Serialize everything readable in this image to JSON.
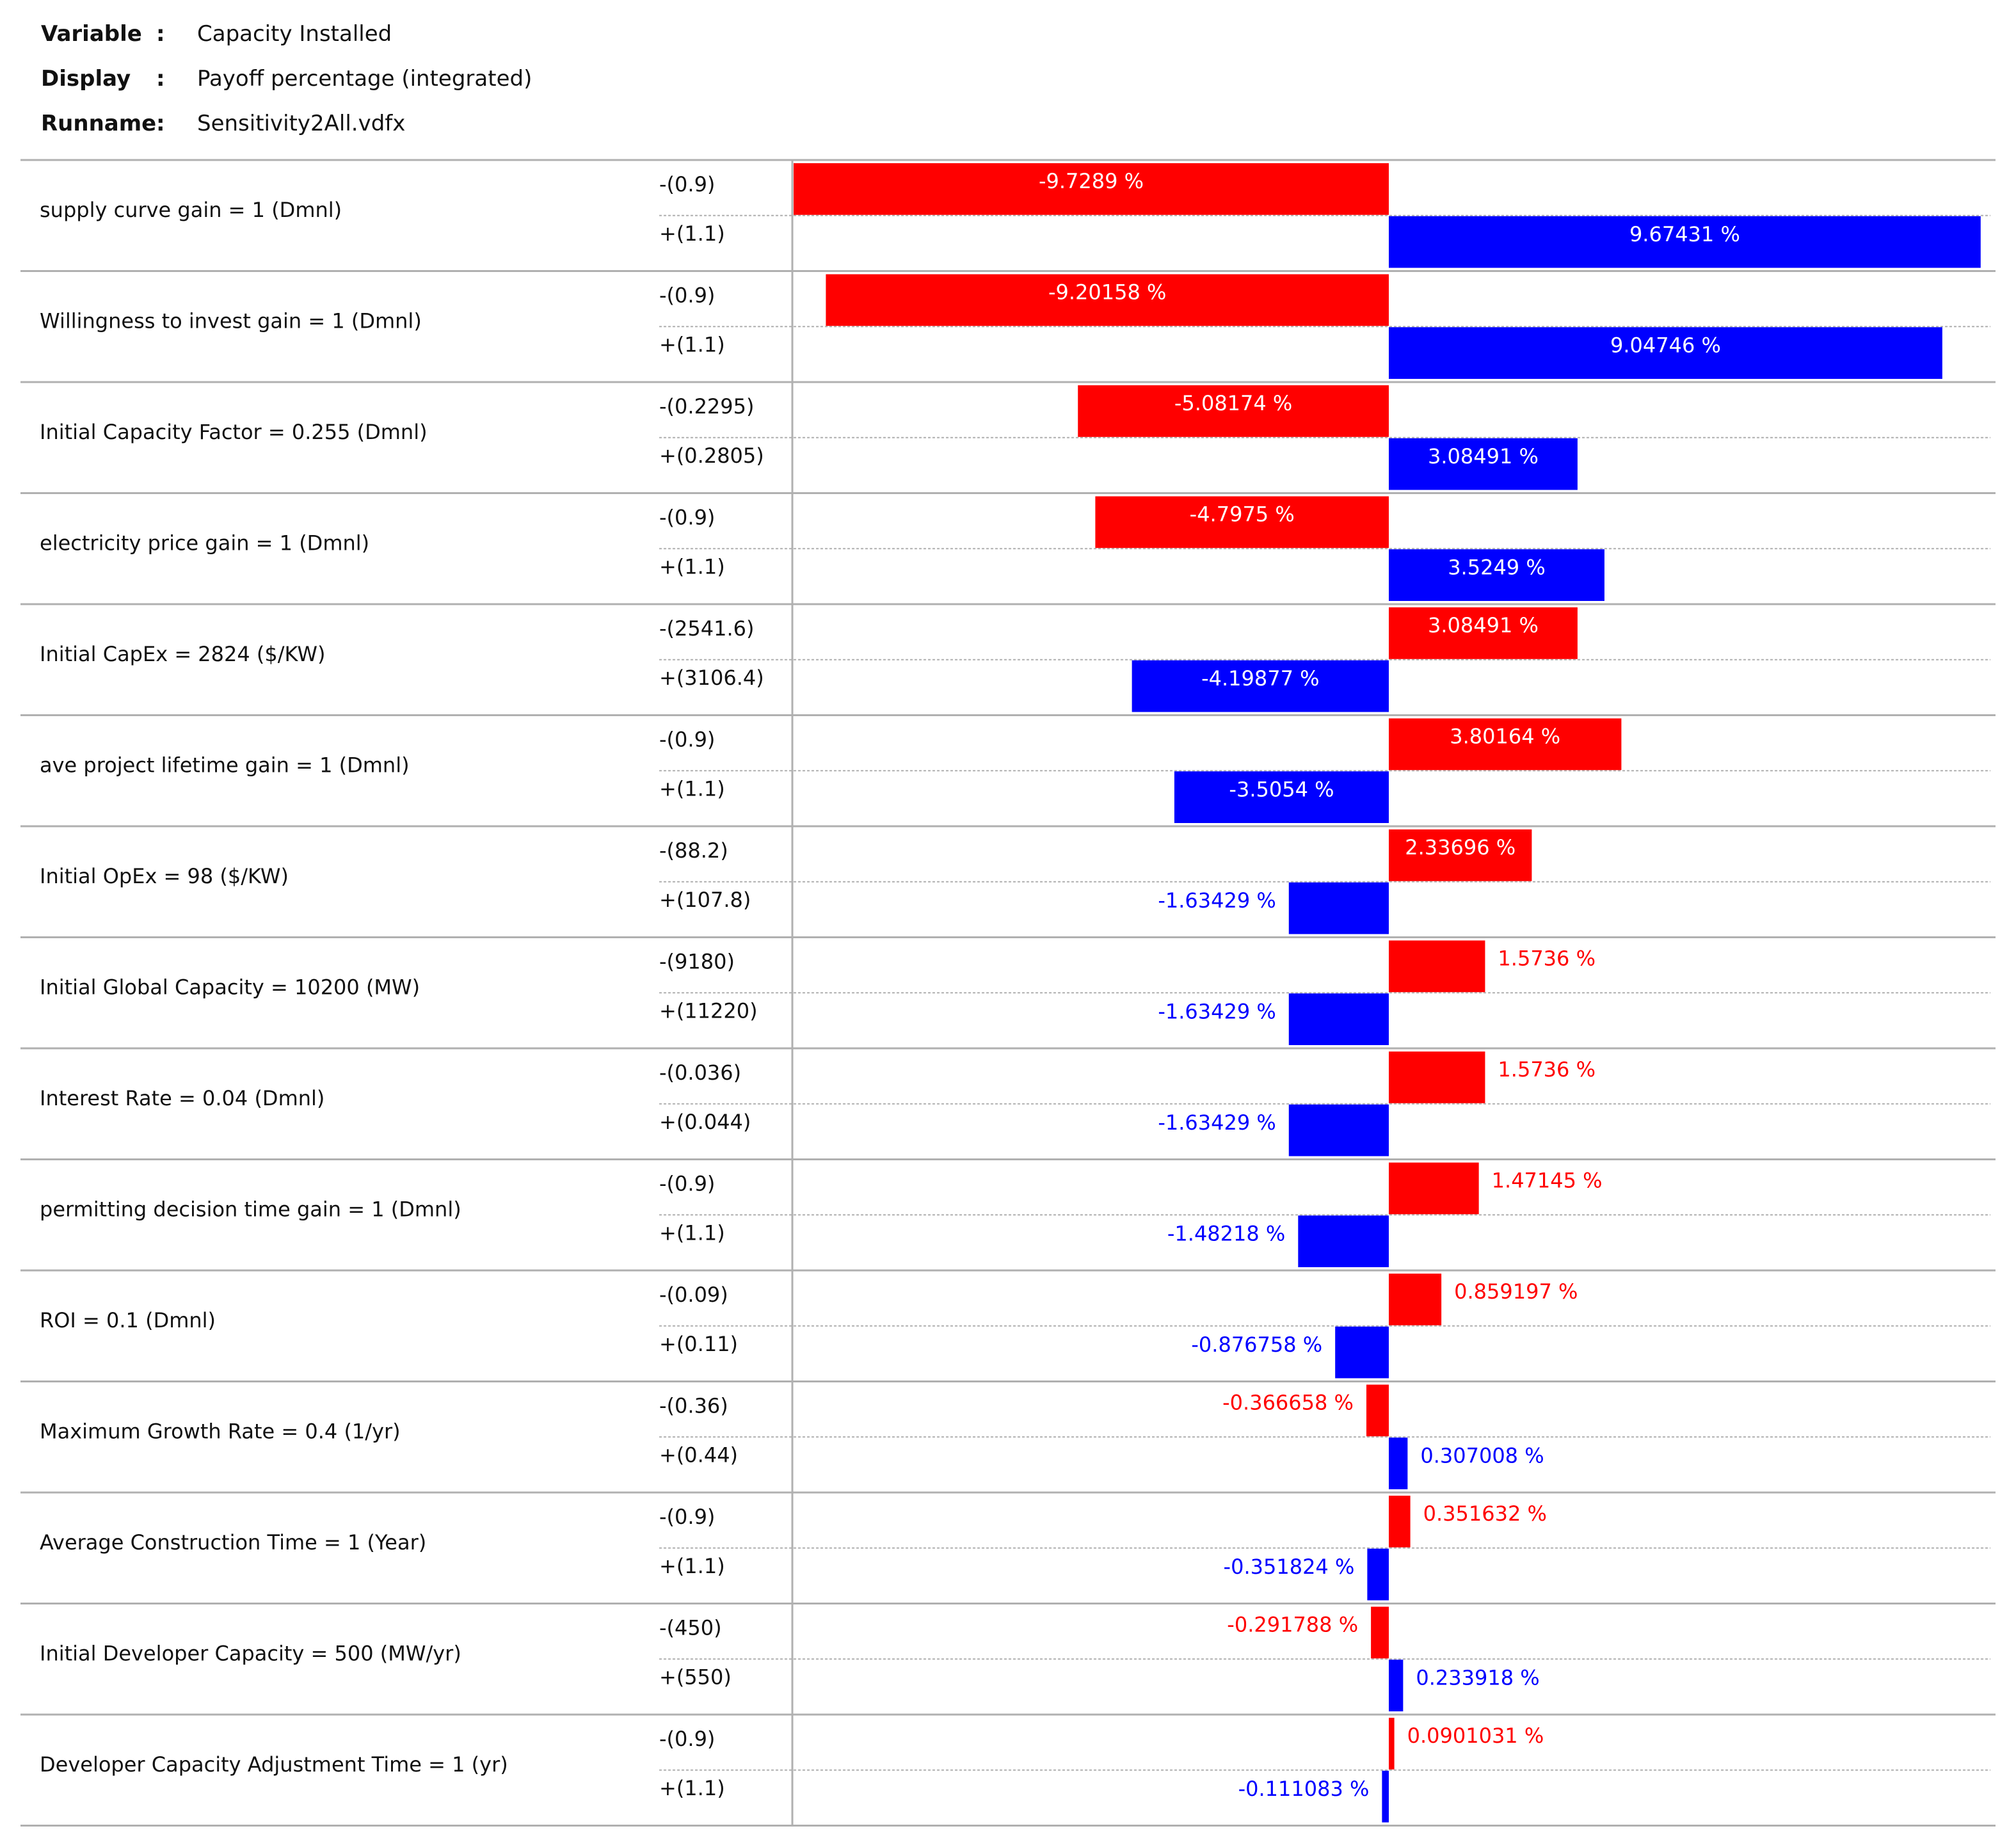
{
  "header": {
    "variable_label": "Variable",
    "variable_value": "Capacity Installed",
    "display_label": "Display",
    "display_value": "Payoff percentage (integrated)",
    "runname_label": "Runname",
    "runname_value": "Sensitivity2All.vdfx",
    "separator": ":"
  },
  "colors": {
    "low_bar": "#ff0000",
    "high_bar": "#0000ff",
    "grid": "#b0b0b0",
    "text": "#111111"
  },
  "chart_data": {
    "type": "tornado",
    "title": "Capacity Installed",
    "unit_suffix": " %",
    "xlim": [
      -9.7289,
      9.67431
    ],
    "rows": [
      {
        "label": "supply curve gain = 1 (Dmnl)",
        "low": "-(0.9)",
        "high": "+(1.1)",
        "low_value": -9.7289,
        "high_value": 9.67431,
        "low_text": "-9.7289 %",
        "high_text": "9.67431 %"
      },
      {
        "label": "Willingness to invest gain = 1 (Dmnl)",
        "low": "-(0.9)",
        "high": "+(1.1)",
        "low_value": -9.20158,
        "high_value": 9.04746,
        "low_text": "-9.20158 %",
        "high_text": "9.04746 %"
      },
      {
        "label": "Initial Capacity Factor = 0.255 (Dmnl)",
        "low": "-(0.2295)",
        "high": "+(0.2805)",
        "low_value": -5.08174,
        "high_value": 3.08491,
        "low_text": "-5.08174 %",
        "high_text": "3.08491 %"
      },
      {
        "label": "electricity price gain = 1 (Dmnl)",
        "low": "-(0.9)",
        "high": "+(1.1)",
        "low_value": -4.7975,
        "high_value": 3.5249,
        "low_text": "-4.7975 %",
        "high_text": "3.5249 %"
      },
      {
        "label": "Initial CapEx = 2824 ($/KW)",
        "low": "-(2541.6)",
        "high": "+(3106.4)",
        "low_value": 3.08491,
        "high_value": -4.19877,
        "low_text": "3.08491 %",
        "high_text": "-4.19877 %"
      },
      {
        "label": "ave project lifetime gain = 1 (Dmnl)",
        "low": "-(0.9)",
        "high": "+(1.1)",
        "low_value": 3.80164,
        "high_value": -3.5054,
        "low_text": "3.80164 %",
        "high_text": "-3.5054 %"
      },
      {
        "label": "Initial OpEx = 98 ($/KW)",
        "low": "-(88.2)",
        "high": "+(107.8)",
        "low_value": 2.33696,
        "high_value": -1.63429,
        "low_text": "2.33696 %",
        "high_text": "-1.63429 %"
      },
      {
        "label": "Initial Global Capacity = 10200 (MW)",
        "low": "-(9180)",
        "high": "+(11220)",
        "low_value": 1.5736,
        "high_value": -1.63429,
        "low_text": "1.5736 %",
        "high_text": "-1.63429 %"
      },
      {
        "label": "Interest Rate = 0.04 (Dmnl)",
        "low": "-(0.036)",
        "high": "+(0.044)",
        "low_value": 1.5736,
        "high_value": -1.63429,
        "low_text": "1.5736 %",
        "high_text": "-1.63429 %"
      },
      {
        "label": "permitting decision time gain = 1 (Dmnl)",
        "low": "-(0.9)",
        "high": "+(1.1)",
        "low_value": 1.47145,
        "high_value": -1.48218,
        "low_text": "1.47145 %",
        "high_text": "-1.48218 %"
      },
      {
        "label": "ROI = 0.1 (Dmnl)",
        "low": "-(0.09)",
        "high": "+(0.11)",
        "low_value": 0.859197,
        "high_value": -0.876758,
        "low_text": "0.859197 %",
        "high_text": "-0.876758 %"
      },
      {
        "label": "Maximum Growth Rate = 0.4 (1/yr)",
        "low": "-(0.36)",
        "high": "+(0.44)",
        "low_value": -0.366658,
        "high_value": 0.307008,
        "low_text": "-0.366658 %",
        "high_text": "0.307008 %"
      },
      {
        "label": "Average Construction Time = 1 (Year)",
        "low": "-(0.9)",
        "high": "+(1.1)",
        "low_value": 0.351632,
        "high_value": -0.351824,
        "low_text": "0.351632 %",
        "high_text": "-0.351824 %"
      },
      {
        "label": "Initial Developer Capacity = 500 (MW/yr)",
        "low": "-(450)",
        "high": "+(550)",
        "low_value": -0.291788,
        "high_value": 0.233918,
        "low_text": "-0.291788 %",
        "high_text": "0.233918 %"
      },
      {
        "label": "Developer Capacity Adjustment Time = 1 (yr)",
        "low": "-(0.9)",
        "high": "+(1.1)",
        "low_value": 0.0901031,
        "high_value": -0.111083,
        "low_text": "0.0901031 %",
        "high_text": "-0.111083 %"
      }
    ]
  }
}
